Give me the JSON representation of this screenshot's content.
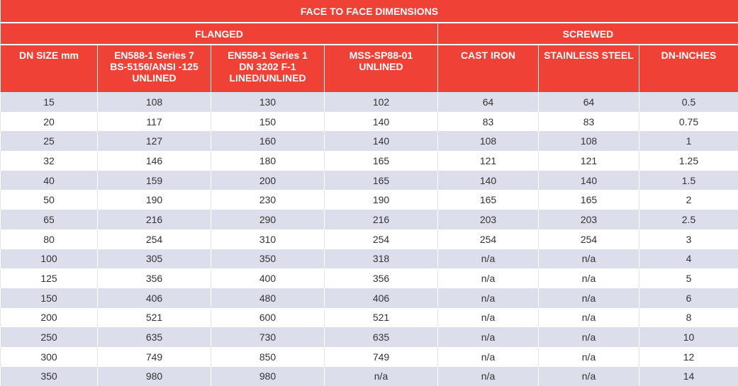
{
  "title": "FACE TO FACE DIMENSIONS",
  "groups": {
    "flanged": "FLANGED",
    "screwed": "SCREWED"
  },
  "columns": [
    [
      "DN SIZE mm"
    ],
    [
      "EN588-1 Series 7",
      "BS-5156/ANSI -125",
      "UNLINED"
    ],
    [
      "EN558-1 Series 1",
      "DN 3202 F-1",
      "LINED/UNLINED"
    ],
    [
      "MSS-SP88-01",
      "UNLINED"
    ],
    [
      "CAST IRON"
    ],
    [
      "STAINLESS STEEL"
    ],
    [
      "DN-INCHES"
    ]
  ],
  "rows": [
    [
      "15",
      "108",
      "130",
      "102",
      "64",
      "64",
      "0.5"
    ],
    [
      "20",
      "117",
      "150",
      "140",
      "83",
      "83",
      "0.75"
    ],
    [
      "25",
      "127",
      "160",
      "140",
      "108",
      "108",
      "1"
    ],
    [
      "32",
      "146",
      "180",
      "165",
      "121",
      "121",
      "1.25"
    ],
    [
      "40",
      "159",
      "200",
      "165",
      "140",
      "140",
      "1.5"
    ],
    [
      "50",
      "190",
      "230",
      "190",
      "165",
      "165",
      "2"
    ],
    [
      "65",
      "216",
      "290",
      "216",
      "203",
      "203",
      "2.5"
    ],
    [
      "80",
      "254",
      "310",
      "254",
      "254",
      "254",
      "3"
    ],
    [
      "100",
      "305",
      "350",
      "318",
      "n/a",
      "n/a",
      "4"
    ],
    [
      "125",
      "356",
      "400",
      "356",
      "n/a",
      "n/a",
      "5"
    ],
    [
      "150",
      "406",
      "480",
      "406",
      "n/a",
      "n/a",
      "6"
    ],
    [
      "200",
      "521",
      "600",
      "521",
      "n/a",
      "n/a",
      "8"
    ],
    [
      "250",
      "635",
      "730",
      "635",
      "n/a",
      "n/a",
      "10"
    ],
    [
      "300",
      "749",
      "850",
      "749",
      "n/a",
      "n/a",
      "12"
    ],
    [
      "350",
      "980",
      "980",
      "n/a",
      "n/a",
      "n/a",
      "14"
    ]
  ],
  "colors": {
    "header_red": "#ef4136",
    "row_stripe": "#dcdfeb",
    "text": "#333333"
  }
}
